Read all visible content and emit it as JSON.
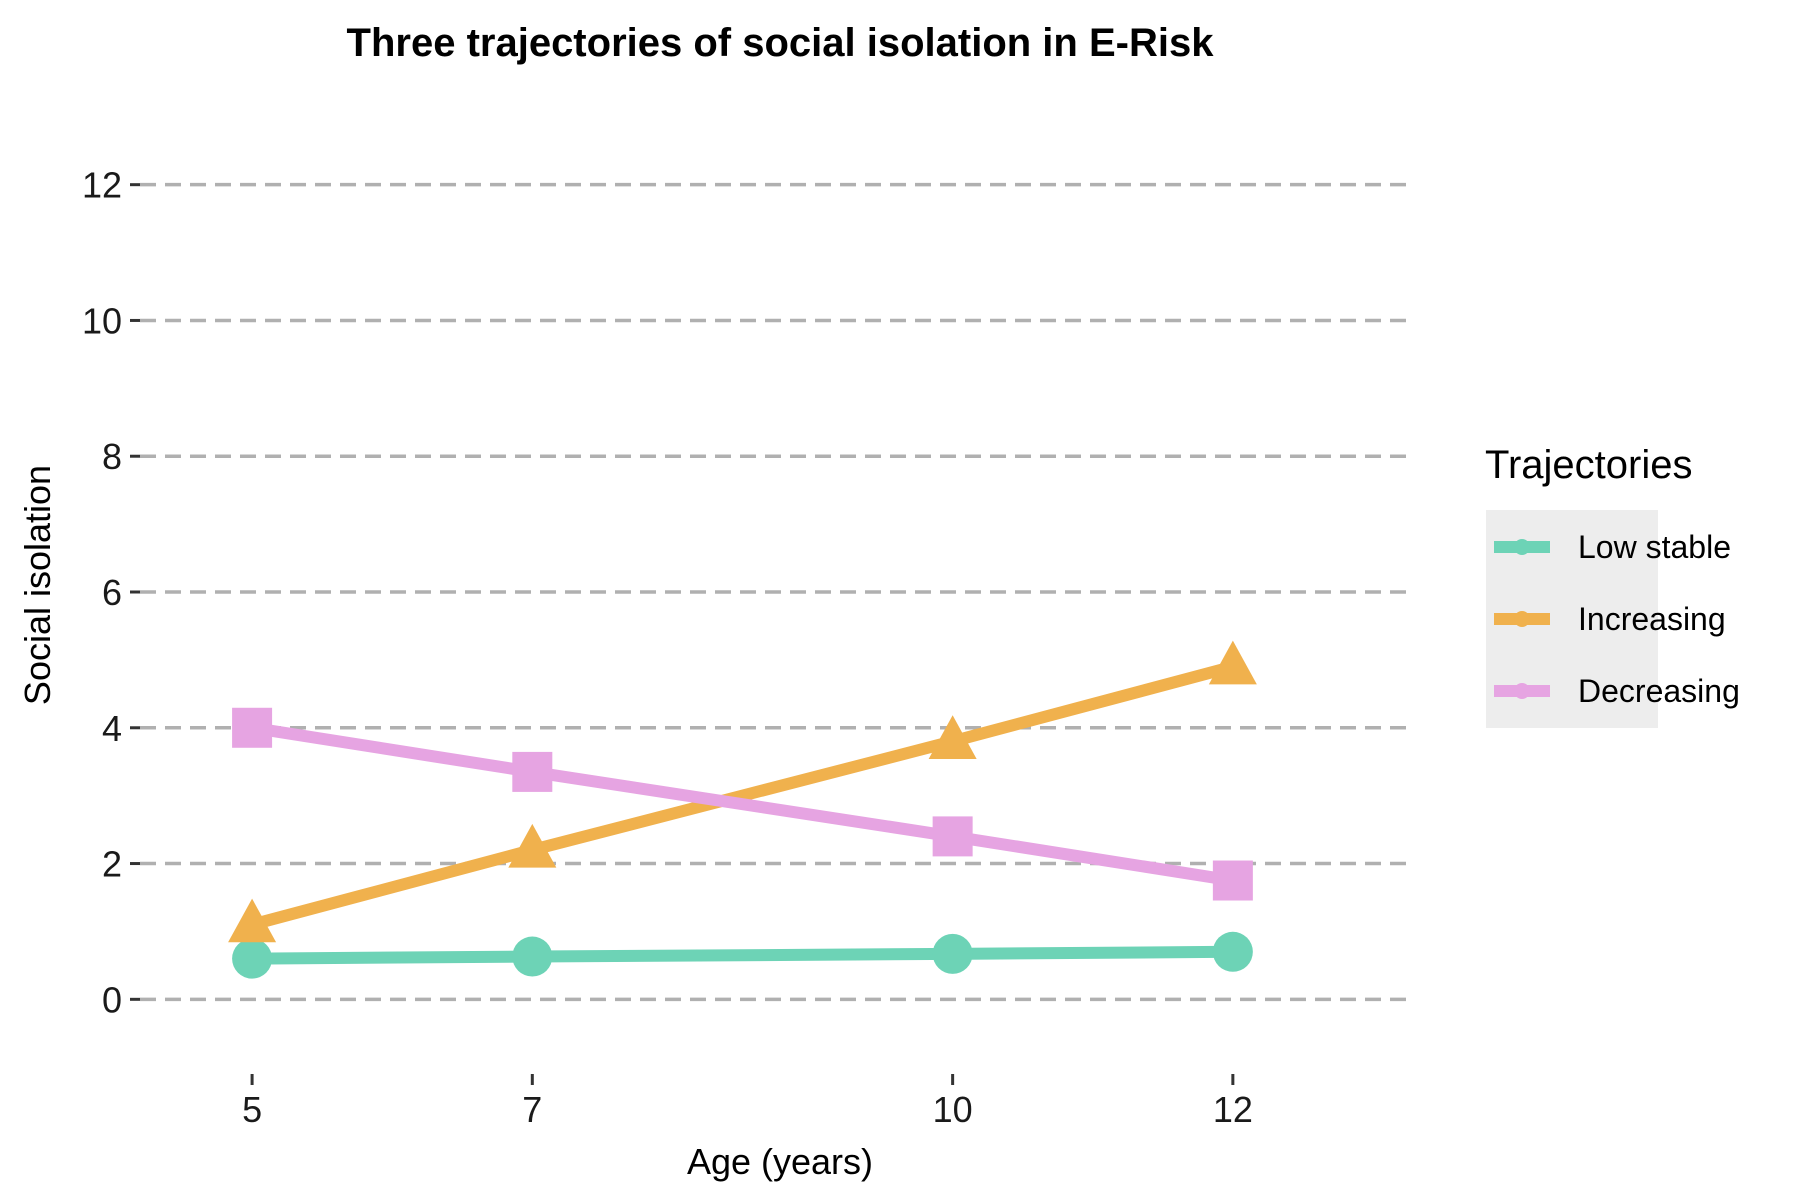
{
  "chart_data": {
    "type": "line",
    "title": "Three trajectories of social isolation in E-Risk",
    "xlabel": "Age (years)",
    "ylabel": "Social isolation",
    "x": [
      5,
      7,
      10,
      12
    ],
    "x_ticks": [
      "5",
      "7",
      "10",
      "12"
    ],
    "y_ticks": [
      "0",
      "2",
      "4",
      "6",
      "8",
      "10",
      "12"
    ],
    "xlim": [
      4.2,
      13.3
    ],
    "ylim": [
      -1.1,
      13.1
    ],
    "grid": "horizontal dashed",
    "legend": {
      "title": "Trajectories",
      "placement": "right"
    },
    "series": [
      {
        "name": "Low stable",
        "values": [
          0.6,
          0.63,
          0.67,
          0.7
        ],
        "color": "#6dd3b6",
        "marker": "circle"
      },
      {
        "name": "Increasing",
        "values": [
          1.1,
          2.2,
          3.8,
          4.9
        ],
        "color": "#f0b14d",
        "marker": "triangle"
      },
      {
        "name": "Decreasing",
        "values": [
          4.0,
          3.35,
          2.4,
          1.75
        ],
        "color": "#e6a4e2",
        "marker": "square"
      }
    ]
  }
}
